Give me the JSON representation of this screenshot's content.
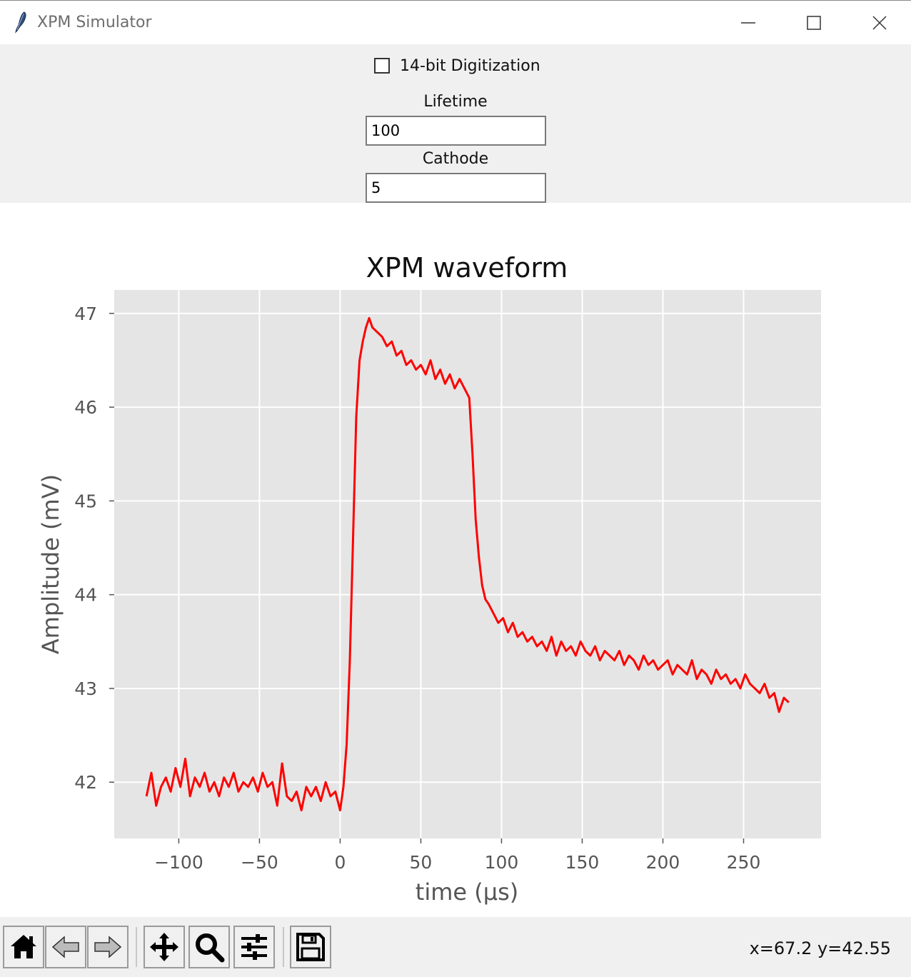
{
  "window": {
    "title": "XPM Simulator"
  },
  "controls": {
    "digitization_label": "14-bit Digitization",
    "digitization_checked": false,
    "lifetime_label": "Lifetime",
    "lifetime_value": "100",
    "cathode_label": "Cathode",
    "cathode_value": "5"
  },
  "toolbar": {
    "coordinates": "x=67.2 y=42.55"
  },
  "chart_data": {
    "type": "line",
    "title": "XPM waveform",
    "xlabel": "time (µs)",
    "ylabel": "Amplitude (mV)",
    "xlim": [
      -140,
      298
    ],
    "ylim": [
      41.4,
      47.25
    ],
    "xticks": [
      -100,
      -50,
      0,
      50,
      100,
      150,
      200,
      250
    ],
    "xtick_labels": [
      "−100",
      "−50",
      "0",
      "50",
      "100",
      "150",
      "200",
      "250"
    ],
    "yticks": [
      42,
      43,
      44,
      45,
      46,
      47
    ],
    "ytick_labels": [
      "42",
      "43",
      "44",
      "45",
      "46",
      "47"
    ],
    "grid": true,
    "series": [
      {
        "color": "#ff0000",
        "x": [
          -120,
          -117,
          -114,
          -111,
          -108,
          -105,
          -102,
          -99,
          -96,
          -93,
          -90,
          -87,
          -84,
          -81,
          -78,
          -75,
          -72,
          -69,
          -66,
          -63,
          -60,
          -57,
          -54,
          -51,
          -48,
          -45,
          -42,
          -39,
          -36,
          -33,
          -30,
          -27,
          -24,
          -21,
          -18,
          -15,
          -12,
          -9,
          -6,
          -3,
          0,
          2,
          4,
          6,
          8,
          10,
          12,
          14,
          16,
          18,
          20,
          23,
          26,
          29,
          32,
          35,
          38,
          41,
          44,
          47,
          50,
          53,
          56,
          59,
          62,
          65,
          68,
          71,
          74,
          77,
          80,
          82,
          84,
          86,
          88,
          90,
          92,
          95,
          98,
          101,
          104,
          107,
          110,
          113,
          116,
          119,
          122,
          125,
          128,
          131,
          134,
          137,
          140,
          143,
          146,
          149,
          152,
          155,
          158,
          161,
          164,
          167,
          170,
          173,
          176,
          179,
          182,
          185,
          188,
          191,
          194,
          197,
          200,
          203,
          206,
          209,
          212,
          215,
          218,
          221,
          224,
          227,
          230,
          233,
          236,
          239,
          242,
          245,
          248,
          251,
          254,
          257,
          260,
          263,
          266,
          269,
          272,
          275,
          278
        ],
        "y": [
          41.85,
          42.1,
          41.75,
          41.95,
          42.05,
          41.9,
          42.15,
          41.95,
          42.25,
          41.85,
          42.05,
          41.95,
          42.1,
          41.9,
          42.0,
          41.85,
          42.05,
          41.95,
          42.1,
          41.9,
          42.0,
          41.95,
          42.05,
          41.9,
          42.1,
          41.95,
          42.0,
          41.75,
          42.2,
          41.85,
          41.8,
          41.9,
          41.7,
          41.95,
          41.85,
          41.95,
          41.8,
          42.0,
          41.85,
          41.9,
          41.7,
          41.95,
          42.4,
          43.3,
          44.6,
          45.9,
          46.5,
          46.7,
          46.85,
          46.95,
          46.85,
          46.8,
          46.75,
          46.65,
          46.7,
          46.55,
          46.6,
          46.45,
          46.5,
          46.4,
          46.45,
          46.35,
          46.5,
          46.3,
          46.4,
          46.25,
          46.35,
          46.2,
          46.3,
          46.2,
          46.1,
          45.5,
          44.8,
          44.4,
          44.1,
          43.95,
          43.9,
          43.8,
          43.7,
          43.75,
          43.6,
          43.7,
          43.55,
          43.6,
          43.5,
          43.55,
          43.45,
          43.5,
          43.4,
          43.55,
          43.35,
          43.5,
          43.4,
          43.45,
          43.35,
          43.5,
          43.4,
          43.35,
          43.45,
          43.3,
          43.4,
          43.35,
          43.3,
          43.4,
          43.25,
          43.35,
          43.3,
          43.2,
          43.35,
          43.25,
          43.3,
          43.2,
          43.25,
          43.3,
          43.15,
          43.25,
          43.2,
          43.15,
          43.3,
          43.1,
          43.2,
          43.15,
          43.05,
          43.2,
          43.1,
          43.15,
          43.05,
          43.1,
          43.0,
          43.15,
          43.05,
          43.0,
          42.95,
          43.05,
          42.9,
          42.95,
          42.75,
          42.9,
          42.85
        ]
      }
    ]
  }
}
